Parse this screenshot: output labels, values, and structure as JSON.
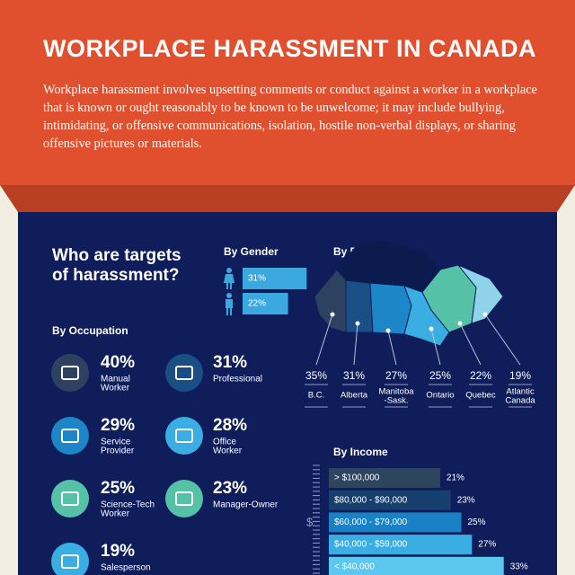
{
  "header": {
    "title": "WORKPLACE HARASSMENT IN CANADA",
    "description": "Workplace harassment involves upsetting comments or conduct against a worker in a workplace that is known or ought reasonably to be known to be unwelcome; it may include bullying, intimidating, or offensive communications, isolation, hostile non-verbal displays, or sharing offensive pictures or materials."
  },
  "targets": {
    "heading": [
      "Who are targets",
      "of harassment?"
    ]
  },
  "gender": {
    "title": "By Gender",
    "values": [
      31,
      22
    ],
    "value_labels": [
      "31%",
      "22%"
    ]
  },
  "occupation": {
    "title": "By Occupation",
    "items": [
      {
        "percent": "40%",
        "label": [
          "Manual",
          "Worker"
        ]
      },
      {
        "percent": "31%",
        "label": [
          "Professional"
        ]
      },
      {
        "percent": "29%",
        "label": [
          "Service",
          "Provider"
        ]
      },
      {
        "percent": "28%",
        "label": [
          "Office",
          "Worker"
        ]
      },
      {
        "percent": "25%",
        "label": [
          "Science-Tech",
          "Worker"
        ]
      },
      {
        "percent": "23%",
        "label": [
          "Manager-Owner"
        ]
      },
      {
        "percent": "19%",
        "label": [
          "Salesperson"
        ]
      }
    ]
  },
  "region": {
    "title": "By Region",
    "items": [
      {
        "percent": "35%",
        "name": [
          "B.C."
        ]
      },
      {
        "percent": "31%",
        "name": [
          "Alberta"
        ]
      },
      {
        "percent": "27%",
        "name": [
          "Manitoba",
          "-Sask."
        ]
      },
      {
        "percent": "25%",
        "name": [
          "Ontario"
        ]
      },
      {
        "percent": "22%",
        "name": [
          "Quebec"
        ]
      },
      {
        "percent": "19%",
        "name": [
          "Atlantic",
          "Canada"
        ]
      }
    ]
  },
  "income": {
    "title": "By Income",
    "axis_label": "$",
    "categories": [
      "> $100,000",
      "$80,000 - $90,000",
      "$60,000 - $79,000",
      "$40,000 - $59,000",
      "< $40,000"
    ],
    "values": [
      21,
      23,
      25,
      27,
      33
    ],
    "value_labels": [
      "21%",
      "23%",
      "25%",
      "27%",
      "33%"
    ],
    "colors": [
      "#2e4560",
      "#173f6e",
      "#1a82c4",
      "#3aaee2",
      "#5cc8ef"
    ]
  }
}
